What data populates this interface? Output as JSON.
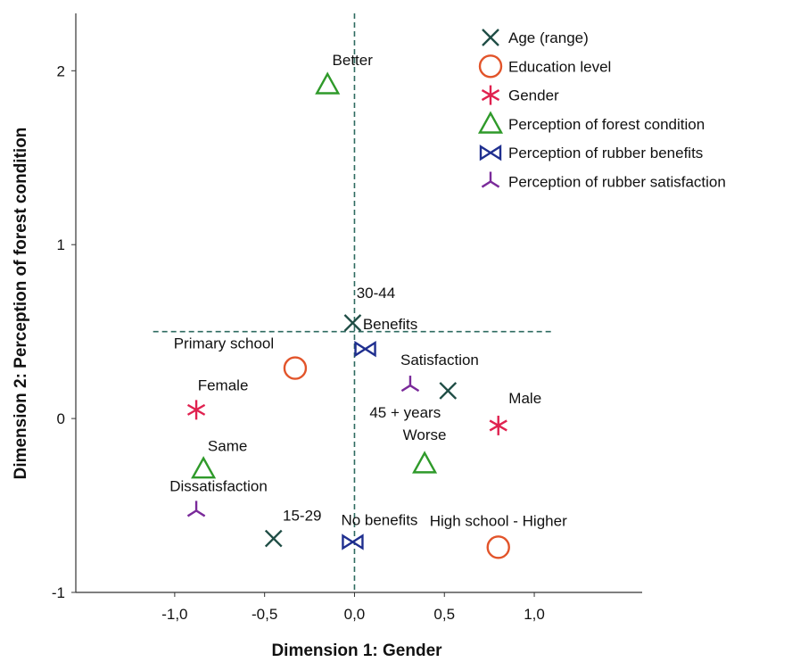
{
  "chart_data": {
    "type": "scatter",
    "xlabel": "Dimension 1: Gender",
    "ylabel": "Dimension 2: Perception of forest condition",
    "xlim": [
      -1.55,
      1.6
    ],
    "ylim": [
      -1,
      2.33
    ],
    "xticks": [
      {
        "value": -1.0,
        "label": "-1,0"
      },
      {
        "value": -0.5,
        "label": "-0,5"
      },
      {
        "value": 0.0,
        "label": "0,0"
      },
      {
        "value": 0.5,
        "label": "0,5"
      },
      {
        "value": 1.0,
        "label": "1,0"
      }
    ],
    "yticks": [
      {
        "value": -1,
        "label": "-1"
      },
      {
        "value": 0,
        "label": "0"
      },
      {
        "value": 1,
        "label": "1"
      },
      {
        "value": 2,
        "label": "2"
      }
    ],
    "reference_lines": {
      "x": 0.0,
      "y": 0.5,
      "x_extent": [
        -1.12,
        1.1
      ]
    },
    "legend_position": "top-right",
    "series": [
      {
        "name": "Age (range)",
        "marker": "x",
        "color": "#1f4d45",
        "points": [
          {
            "label": "30-44",
            "x": -0.01,
            "y": 0.55
          },
          {
            "label": "45 + years",
            "x": 0.52,
            "y": 0.16
          },
          {
            "label": "15-29",
            "x": -0.45,
            "y": -0.69
          }
        ]
      },
      {
        "name": "Education level",
        "marker": "circle",
        "color": "#e2542a",
        "points": [
          {
            "label": "Primary school",
            "x": -0.33,
            "y": 0.29
          },
          {
            "label": "High school - Higher",
            "x": 0.8,
            "y": -0.74
          }
        ]
      },
      {
        "name": "Gender",
        "marker": "star",
        "color": "#e0214f",
        "points": [
          {
            "label": "Female",
            "x": -0.88,
            "y": 0.05
          },
          {
            "label": "Male",
            "x": 0.8,
            "y": -0.04
          }
        ]
      },
      {
        "name": "Perception of forest condition",
        "marker": "triangle",
        "color": "#2f9a2a",
        "points": [
          {
            "label": "Better",
            "x": -0.15,
            "y": 1.92
          },
          {
            "label": "Same",
            "x": -0.84,
            "y": -0.29
          },
          {
            "label": "Worse",
            "x": 0.39,
            "y": -0.26
          }
        ]
      },
      {
        "name": "Perception of rubber benefits",
        "marker": "bowtie",
        "color": "#1f2f8f",
        "points": [
          {
            "label": "Benefits",
            "x": 0.06,
            "y": 0.4
          },
          {
            "label": "No benefits",
            "x": -0.01,
            "y": -0.71
          }
        ]
      },
      {
        "name": "Perception of rubber satisfaction",
        "marker": "tri",
        "color": "#7a2a9a",
        "points": [
          {
            "label": "Satisfaction",
            "x": 0.31,
            "y": 0.19
          },
          {
            "label": "Dissatisfaction",
            "x": -0.88,
            "y": -0.53
          }
        ]
      }
    ]
  }
}
